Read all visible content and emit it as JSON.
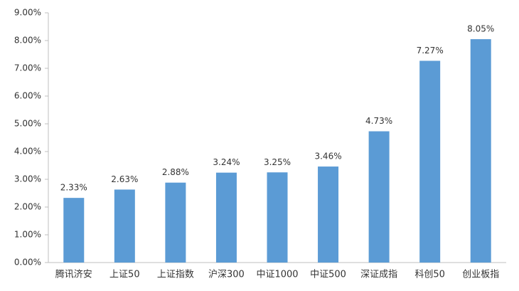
{
  "chart_data": {
    "type": "bar",
    "categories": [
      "腾讯济安",
      "上证50",
      "上证指数",
      "沪深300",
      "中证1000",
      "中证500",
      "深证成指",
      "科创50",
      "创业板指"
    ],
    "values": [
      2.33,
      2.63,
      2.88,
      3.24,
      3.25,
      3.46,
      4.73,
      7.27,
      8.05
    ],
    "value_labels": [
      "2.33%",
      "2.63%",
      "2.88%",
      "3.24%",
      "3.25%",
      "3.46%",
      "4.73%",
      "7.27%",
      "8.05%"
    ],
    "color": "#5b9bd5",
    "ylim": [
      0,
      9
    ],
    "yticks": [
      {
        "value": 0,
        "label": "0.00%"
      },
      {
        "value": 1,
        "label": "1.00%"
      },
      {
        "value": 2,
        "label": "2.00%"
      },
      {
        "value": 3,
        "label": "3.00%"
      },
      {
        "value": 4,
        "label": "4.00%"
      },
      {
        "value": 5,
        "label": "5.00%"
      },
      {
        "value": 6,
        "label": "6.00%"
      },
      {
        "value": 7,
        "label": "7.00%"
      },
      {
        "value": 8,
        "label": "8.00%"
      },
      {
        "value": 9,
        "label": "9.00%"
      }
    ],
    "grid": false
  }
}
